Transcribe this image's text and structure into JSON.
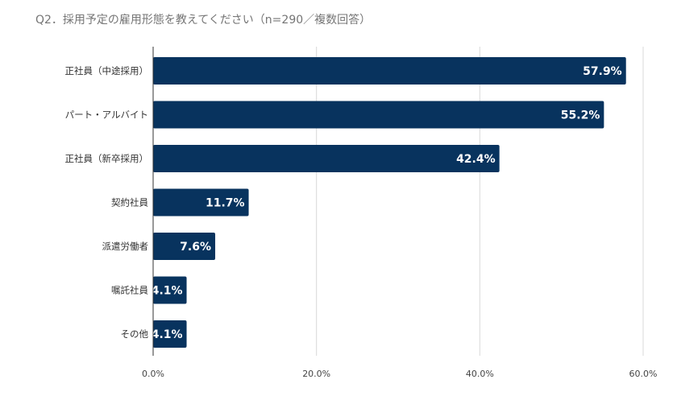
{
  "chart_data": {
    "type": "bar",
    "orientation": "horizontal",
    "title": "Q2．採用予定の雇用形態を教えてください（n=290／複数回答）",
    "categories": [
      "正社員（中途採用）",
      "パート・アルバイト",
      "正社員（新卒採用）",
      "契約社員",
      "派遣労働者",
      "嘱託社員",
      "その他"
    ],
    "values": [
      57.9,
      55.2,
      42.4,
      11.7,
      7.6,
      4.1,
      4.1
    ],
    "value_labels": [
      "57.9%",
      "55.2%",
      "42.4%",
      "11.7%",
      "7.6%",
      "4.1%",
      "4.1%"
    ],
    "xlim": [
      0,
      60
    ],
    "ticks": [
      0,
      20,
      40,
      60
    ],
    "tick_labels": [
      "0.0%",
      "20.0%",
      "40.0%",
      "60.0%"
    ],
    "grid": true,
    "xlabel": "",
    "ylabel": "",
    "colors": {
      "bar": "#08335e",
      "grid": "#d9d9d9",
      "axis": "#333333"
    }
  }
}
